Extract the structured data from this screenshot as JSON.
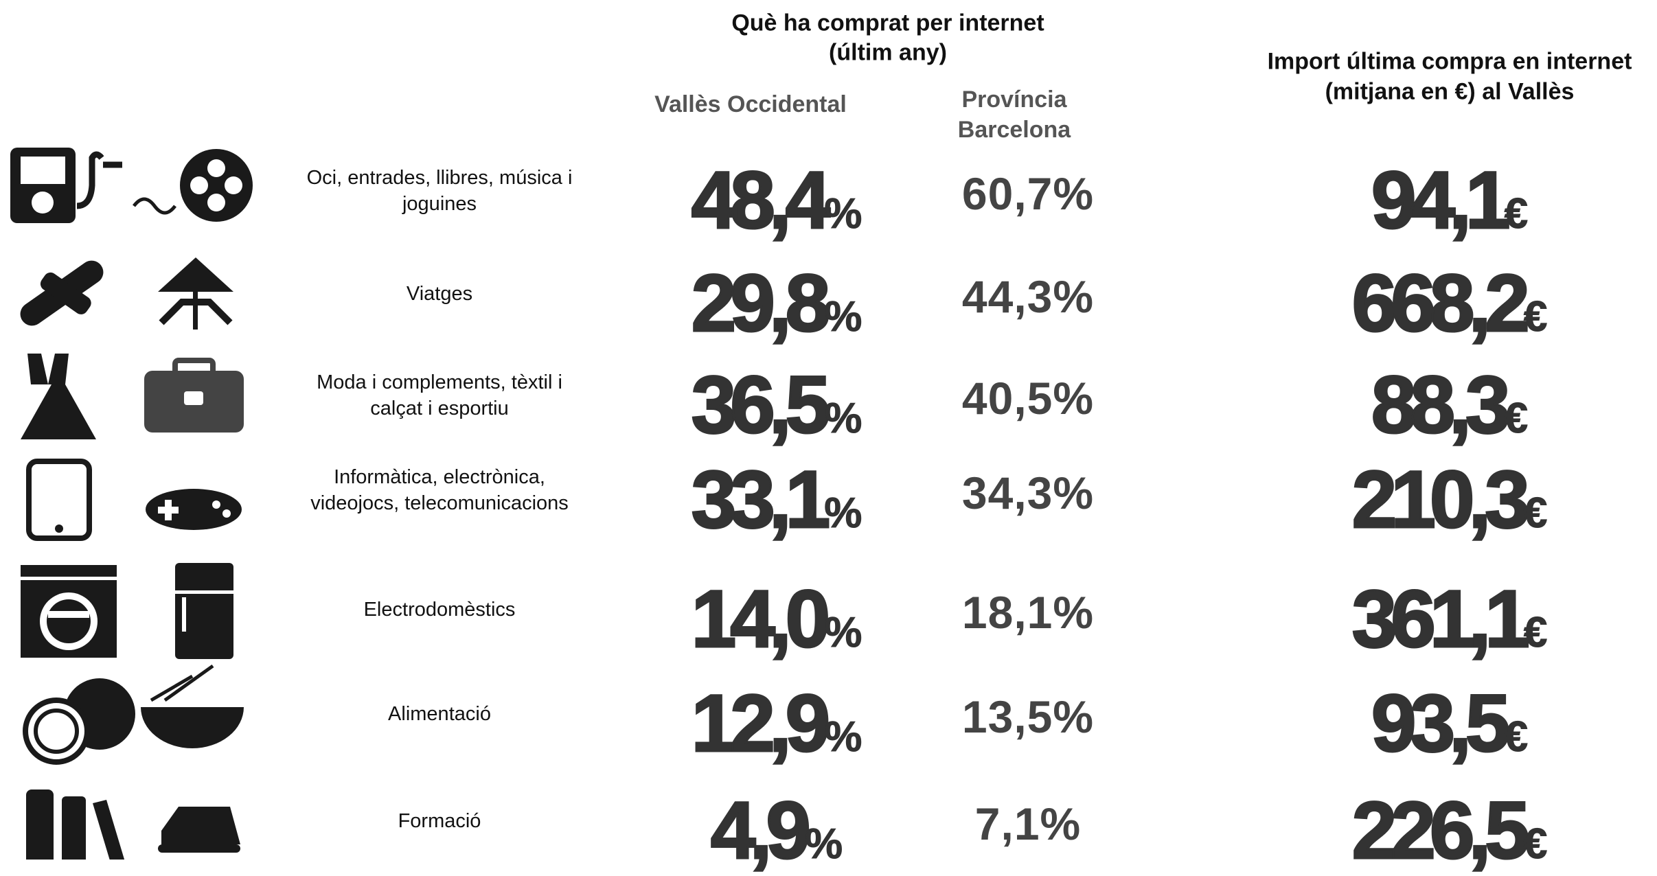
{
  "header": {
    "title": "Què ha comprat per internet",
    "subtitle": "(últim any)",
    "col_valles": "Vallès Occidental",
    "col_provincia": [
      "Província",
      "Barcelona"
    ],
    "import_title": "Import última compra en internet",
    "import_subtitle": "(mitjana en €) al Vallès"
  },
  "table": {
    "rows": [
      {
        "label": [
          "Oci, entrades, llibres, música i",
          "joguines"
        ],
        "valles": {
          "value": "48,4",
          "unit": "%"
        },
        "provincia": "60,7%",
        "import": {
          "value": "94,1",
          "unit": "€"
        }
      },
      {
        "label": [
          "Viatges"
        ],
        "valles": {
          "value": "29,8",
          "unit": "%"
        },
        "provincia": "44,3%",
        "import": {
          "value": "668,2",
          "unit": "€"
        }
      },
      {
        "label": [
          "Moda i complements, tèxtil i",
          "calçat i esportiu"
        ],
        "valles": {
          "value": "36,5",
          "unit": "%"
        },
        "provincia": "40,5%",
        "import": {
          "value": "88,3",
          "unit": "€"
        }
      },
      {
        "label": [
          "Informàtica, electrònica,",
          "videojocs, telecomunicacions"
        ],
        "valles": {
          "value": "33,1",
          "unit": "%"
        },
        "provincia": "34,3%",
        "import": {
          "value": "210,3",
          "unit": "€"
        }
      },
      {
        "label": [
          "Electrodomèstics"
        ],
        "valles": {
          "value": "14,0",
          "unit": "%"
        },
        "provincia": "18,1%",
        "import": {
          "value": "361,1",
          "unit": "€"
        }
      },
      {
        "label": [
          "Alimentació"
        ],
        "valles": {
          "value": "12,9",
          "unit": "%"
        },
        "provincia": "13,5%",
        "import": {
          "value": "93,5",
          "unit": "€"
        }
      },
      {
        "label": [
          "Formació"
        ],
        "valles": {
          "value": "4,9",
          "unit": "%"
        },
        "provincia": "7,1%",
        "import": {
          "value": "226,5",
          "unit": "€"
        }
      }
    ]
  }
}
